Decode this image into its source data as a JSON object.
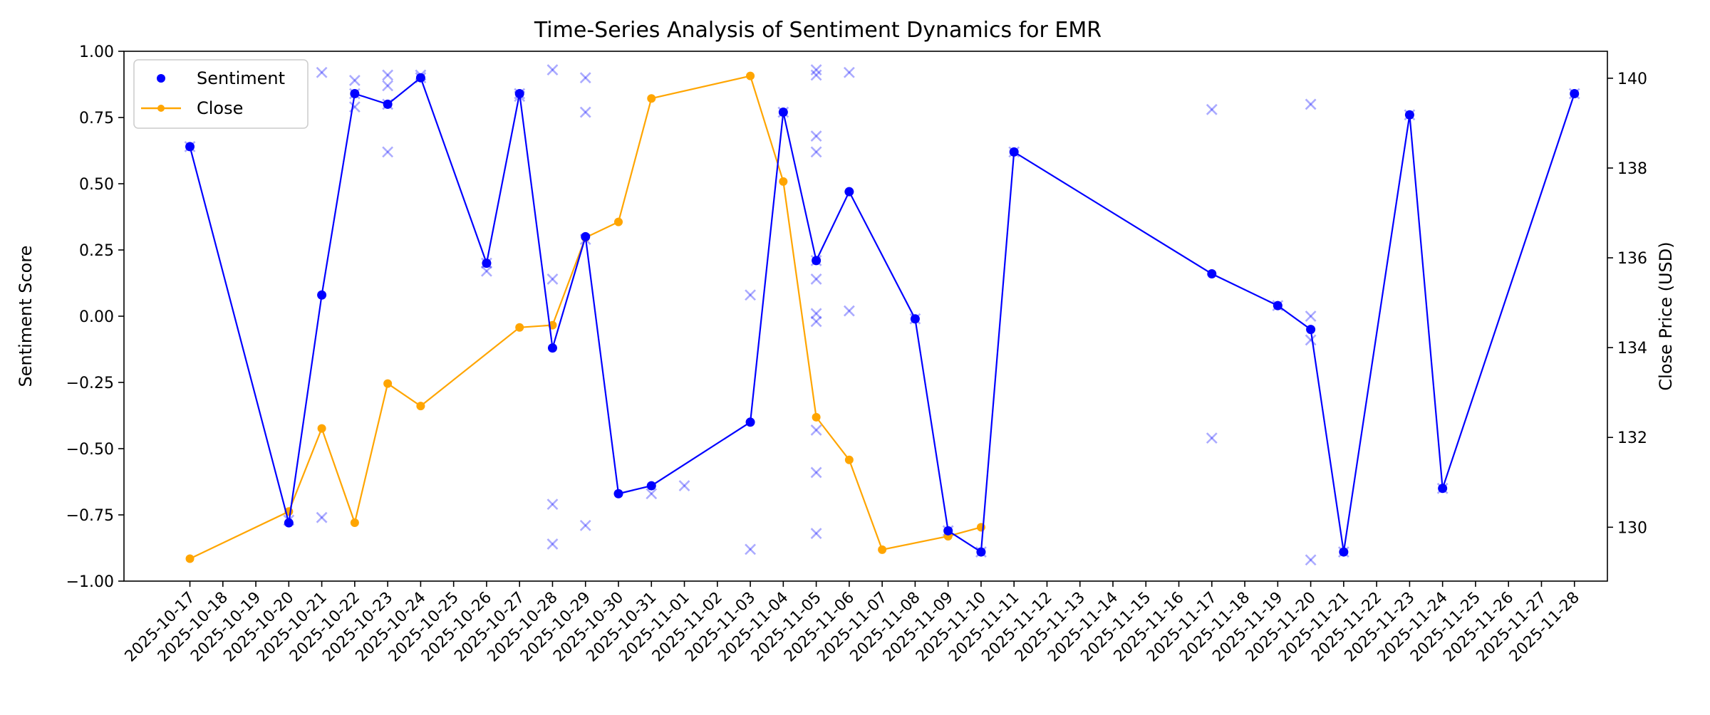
{
  "chart_data": {
    "type": "line",
    "title": "Time-Series Analysis of Sentiment Dynamics for EMR",
    "xlabel": "",
    "ylabel": "Sentiment Score",
    "y2label": "Close Price (USD)",
    "ylim": [
      -1.0,
      1.0
    ],
    "y2lim": [
      128.8,
      140.6
    ],
    "xlim": [
      "2025-10-15",
      "2025-11-29"
    ],
    "grid": false,
    "legend": {
      "placement": "top-left",
      "entries": [
        "Sentiment",
        "Close"
      ]
    },
    "x_tick_labels": [
      "2025-10-17",
      "2025-10-18",
      "2025-10-19",
      "2025-10-20",
      "2025-10-21",
      "2025-10-22",
      "2025-10-23",
      "2025-10-24",
      "2025-10-25",
      "2025-10-26",
      "2025-10-27",
      "2025-10-28",
      "2025-10-29",
      "2025-10-30",
      "2025-10-31",
      "2025-11-01",
      "2025-11-02",
      "2025-11-03",
      "2025-11-04",
      "2025-11-05",
      "2025-11-06",
      "2025-11-07",
      "2025-11-08",
      "2025-11-09",
      "2025-11-10",
      "2025-11-11",
      "2025-11-12",
      "2025-11-13",
      "2025-11-14",
      "2025-11-15",
      "2025-11-16",
      "2025-11-17",
      "2025-11-18",
      "2025-11-19",
      "2025-11-20",
      "2025-11-21",
      "2025-11-22",
      "2025-11-23",
      "2025-11-24",
      "2025-11-25",
      "2025-11-26",
      "2025-11-27",
      "2025-11-28"
    ],
    "y_ticks": [
      -1.0,
      -0.75,
      -0.5,
      -0.25,
      0.0,
      0.25,
      0.5,
      0.75,
      1.0
    ],
    "y_tick_labels": [
      "−1.00",
      "−0.75",
      "−0.50",
      "−0.25",
      "0.00",
      "0.25",
      "0.50",
      "0.75",
      "1.00"
    ],
    "y2_ticks": [
      130,
      132,
      134,
      136,
      138,
      140
    ],
    "y2_tick_labels": [
      "130",
      "132",
      "134",
      "136",
      "138",
      "140"
    ],
    "colors": {
      "sentiment": "#0000ff",
      "close": "#ffa500",
      "raw": "#0000ff"
    },
    "series": [
      {
        "name": "Sentiment",
        "axis": "left",
        "x": [
          "2025-10-17",
          "2025-10-20",
          "2025-10-21",
          "2025-10-22",
          "2025-10-23",
          "2025-10-24",
          "2025-10-26",
          "2025-10-27",
          "2025-10-28",
          "2025-10-29",
          "2025-10-30",
          "2025-10-31",
          "2025-11-03",
          "2025-11-04",
          "2025-11-05",
          "2025-11-06",
          "2025-11-08",
          "2025-11-09",
          "2025-11-10",
          "2025-11-11",
          "2025-11-17",
          "2025-11-19",
          "2025-11-20",
          "2025-11-21",
          "2025-11-23",
          "2025-11-24",
          "2025-11-28"
        ],
        "y": [
          0.64,
          -0.78,
          0.08,
          0.84,
          0.8,
          0.9,
          0.2,
          0.84,
          -0.12,
          0.3,
          -0.67,
          -0.64,
          -0.4,
          0.77,
          0.21,
          0.47,
          -0.01,
          -0.81,
          -0.89,
          0.62,
          0.16,
          0.04,
          -0.05,
          -0.89,
          0.76,
          -0.65,
          0.84
        ]
      },
      {
        "name": "Close",
        "axis": "right",
        "x": [
          "2025-10-17",
          "2025-10-20",
          "2025-10-21",
          "2025-10-22",
          "2025-10-23",
          "2025-10-24",
          "2025-10-27",
          "2025-10-28",
          "2025-10-29",
          "2025-10-30",
          "2025-10-31",
          "2025-11-03",
          "2025-11-04",
          "2025-11-05",
          "2025-11-06",
          "2025-11-07",
          "2025-11-09",
          "2025-11-10"
        ],
        "y": [
          129.3,
          130.35,
          132.2,
          130.1,
          133.2,
          132.7,
          134.45,
          134.5,
          136.45,
          136.8,
          139.55,
          140.05,
          137.7,
          132.45,
          131.5,
          129.5,
          129.8,
          130.0
        ]
      }
    ],
    "raw_points": {
      "x": [
        "2025-10-17",
        "2025-10-20",
        "2025-10-21",
        "2025-10-21",
        "2025-10-22",
        "2025-10-22",
        "2025-10-22",
        "2025-10-23",
        "2025-10-23",
        "2025-10-23",
        "2025-10-23",
        "2025-10-24",
        "2025-10-24",
        "2025-10-26",
        "2025-10-26",
        "2025-10-27",
        "2025-10-27",
        "2025-10-28",
        "2025-10-28",
        "2025-10-28",
        "2025-10-28",
        "2025-10-29",
        "2025-10-29",
        "2025-10-29",
        "2025-10-29",
        "2025-10-31",
        "2025-11-01",
        "2025-11-03",
        "2025-11-03",
        "2025-11-04",
        "2025-11-05",
        "2025-11-05",
        "2025-11-05",
        "2025-11-05",
        "2025-11-05",
        "2025-11-05",
        "2025-11-05",
        "2025-11-05",
        "2025-11-05",
        "2025-11-05",
        "2025-11-05",
        "2025-11-06",
        "2025-11-06",
        "2025-11-08",
        "2025-11-09",
        "2025-11-10",
        "2025-11-11",
        "2025-11-17",
        "2025-11-17",
        "2025-11-19",
        "2025-11-20",
        "2025-11-20",
        "2025-11-20",
        "2025-11-20",
        "2025-11-21",
        "2025-11-23",
        "2025-11-24",
        "2025-11-28"
      ],
      "y": [
        0.64,
        -0.77,
        -0.76,
        0.92,
        0.89,
        0.79,
        0.84,
        0.91,
        0.87,
        0.62,
        0.8,
        0.91,
        0.9,
        0.17,
        0.2,
        0.84,
        0.83,
        0.93,
        0.14,
        -0.71,
        -0.86,
        0.9,
        0.77,
        -0.79,
        0.29,
        -0.67,
        -0.64,
        0.08,
        -0.88,
        0.77,
        0.93,
        0.91,
        0.68,
        0.62,
        0.14,
        0.01,
        -0.02,
        -0.43,
        -0.59,
        -0.82,
        0.21,
        0.92,
        0.02,
        -0.01,
        -0.81,
        -0.89,
        0.62,
        0.78,
        -0.46,
        0.04,
        0.8,
        0.0,
        -0.09,
        -0.92,
        -0.89,
        0.76,
        -0.65,
        0.84
      ]
    }
  }
}
